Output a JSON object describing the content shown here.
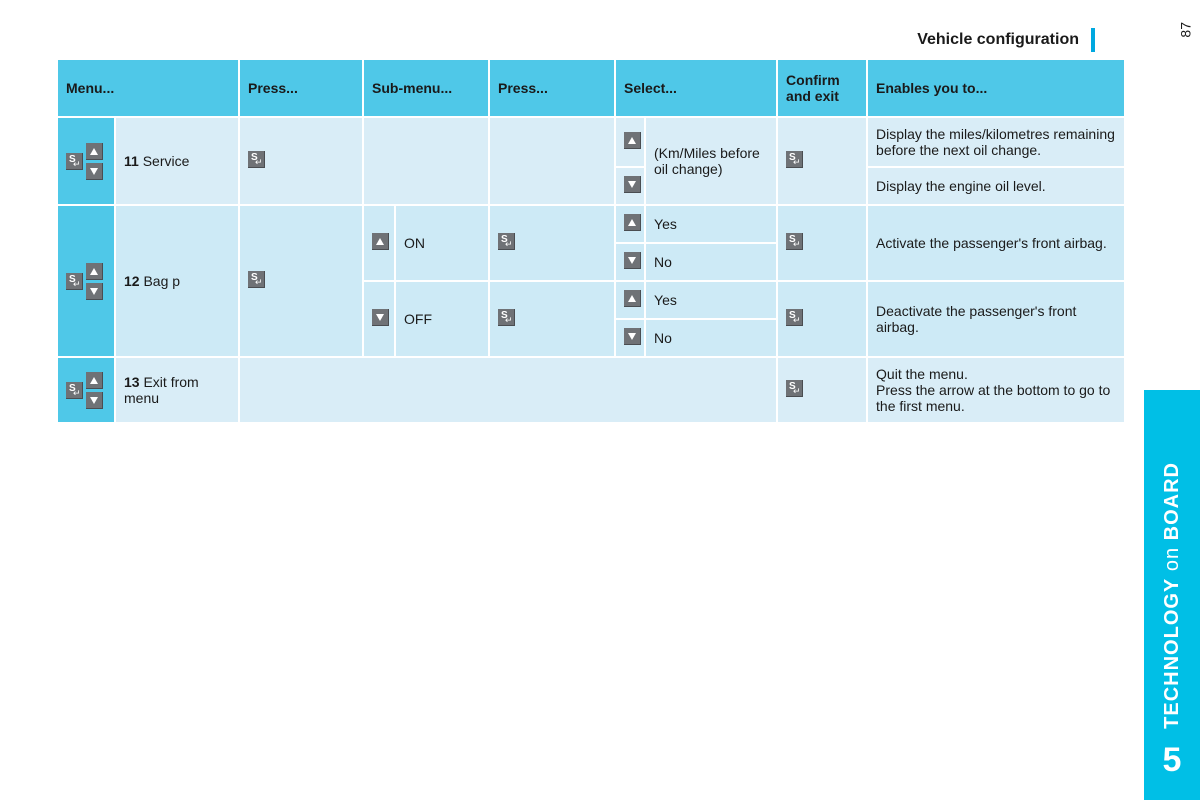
{
  "page_number": "87",
  "section_title": "Vehicle configuration",
  "tab": {
    "number": "5",
    "label_a": "TECHNOLOGY",
    "label_b": "on",
    "label_c": "BOARD"
  },
  "headers": {
    "menu": "Menu...",
    "press": "Press...",
    "submenu": "Sub-menu...",
    "press2": "Press...",
    "select": "Select...",
    "confirm": "Confirm and exit",
    "enables": "Enables you to..."
  },
  "rows": {
    "r11": {
      "num": "11",
      "label": "Service",
      "select": "(Km/Miles before oil change)",
      "enable_a": "Display the miles/kilometres remaining before the next oil change.",
      "enable_b": "Display the engine oil level."
    },
    "r12": {
      "num": "12",
      "label": "Bag p",
      "on": "ON",
      "off": "OFF",
      "yes": "Yes",
      "no": "No",
      "enable_on": "Activate the passenger's front airbag.",
      "enable_off": "Deactivate the passenger's front airbag."
    },
    "r13": {
      "num": "13",
      "label": "Exit from menu",
      "enable": "Quit the menu.\nPress the arrow at the bottom to go to the first menu."
    }
  },
  "colors": {
    "accent": "#00bfe6",
    "header_bg": "#4fc8e8",
    "cell_pale": "#cdeaf6",
    "cell_pale2": "#d9edf7",
    "btn_bg": "#6f7276"
  }
}
